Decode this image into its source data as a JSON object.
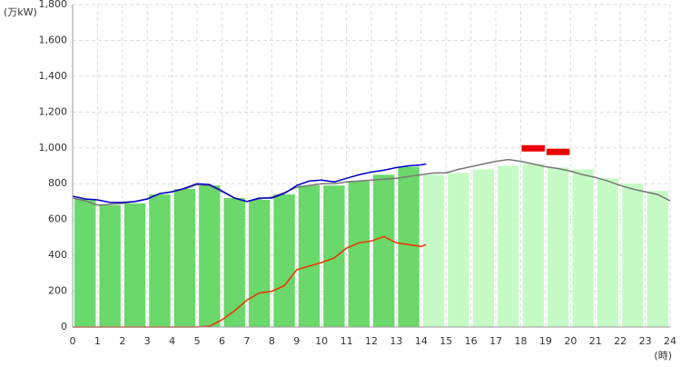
{
  "chart_data": {
    "type": "combo",
    "y_unit": "(万kW)",
    "x_unit": "(時)",
    "xlim": [
      0,
      24
    ],
    "xticks": [
      0,
      1,
      2,
      3,
      4,
      5,
      6,
      7,
      8,
      9,
      10,
      11,
      12,
      13,
      14,
      15,
      16,
      17,
      18,
      19,
      20,
      21,
      22,
      23,
      24
    ],
    "ylim": [
      0,
      1800
    ],
    "yticks": [
      0,
      200,
      400,
      600,
      800,
      {
        "value": 1000,
        "label": "1,000"
      },
      {
        "value": 1200,
        "label": "1,200"
      },
      {
        "value": 1400,
        "label": "1,400"
      },
      {
        "value": 1600,
        "label": "1,600"
      },
      {
        "value": 1800,
        "label": "1,800"
      }
    ],
    "grid": true,
    "series": [
      {
        "type": "bar",
        "color": "#6ad86a",
        "x": [
          0,
          1,
          2,
          3,
          4,
          5,
          6,
          7,
          8,
          9,
          10,
          11,
          12,
          13
        ],
        "values": [
          715,
          680,
          690,
          740,
          770,
          790,
          720,
          710,
          740,
          790,
          790,
          815,
          850,
          895
        ]
      },
      {
        "type": "bar",
        "color": "#c6fbc6",
        "x": [
          14,
          15,
          16,
          17,
          18,
          19,
          20,
          21,
          22,
          23
        ],
        "values": [
          850,
          860,
          880,
          900,
          910,
          890,
          880,
          830,
          800,
          760
        ]
      },
      {
        "type": "marker",
        "color": "#ee0000",
        "x": [
          18,
          19
        ],
        "values": [
          1000,
          980
        ]
      },
      {
        "type": "line",
        "color": "#777777",
        "x": [
          0,
          0.5,
          1,
          1.5,
          2,
          2.5,
          3,
          3.5,
          4,
          4.5,
          5,
          5.5,
          6,
          6.5,
          7,
          7.5,
          8,
          8.5,
          9,
          9.5,
          10,
          10.5,
          11,
          11.5,
          12,
          12.5,
          13,
          13.5,
          14,
          14.5,
          15,
          15.5,
          16,
          16.5,
          17,
          17.5,
          18,
          18.5,
          19,
          19.5,
          20,
          20.5,
          21,
          21.5,
          22,
          22.5,
          23,
          23.5,
          24
        ],
        "values": [
          720,
          705,
          680,
          685,
          690,
          700,
          715,
          745,
          755,
          770,
          795,
          790,
          755,
          720,
          700,
          715,
          725,
          750,
          780,
          790,
          800,
          800,
          810,
          815,
          820,
          825,
          830,
          840,
          850,
          860,
          860,
          880,
          895,
          910,
          925,
          935,
          925,
          910,
          895,
          885,
          870,
          850,
          835,
          815,
          790,
          770,
          755,
          740,
          705
        ]
      },
      {
        "type": "line",
        "color": "#0000cc",
        "x": [
          0,
          0.5,
          1,
          1.5,
          2,
          2.5,
          3,
          3.5,
          4,
          4.5,
          5,
          5.5,
          6,
          6.5,
          7,
          7.5,
          8,
          8.5,
          9,
          9.5,
          10,
          10.5,
          11,
          11.5,
          12,
          12.5,
          13,
          13.5,
          14,
          14.2
        ],
        "values": [
          730,
          715,
          710,
          695,
          695,
          700,
          715,
          745,
          755,
          775,
          800,
          795,
          760,
          720,
          700,
          720,
          720,
          745,
          790,
          815,
          820,
          810,
          830,
          850,
          865,
          875,
          890,
          900,
          905,
          910
        ]
      },
      {
        "type": "line",
        "color": "#ee3300",
        "x": [
          0,
          1,
          2,
          3,
          4,
          5,
          5.5,
          6,
          6.5,
          7,
          7.5,
          8,
          8.5,
          9,
          9.5,
          10,
          10.5,
          11,
          11.5,
          12,
          12.5,
          13,
          13.5,
          14,
          14.2
        ],
        "values": [
          0,
          0,
          0,
          0,
          0,
          0,
          5,
          40,
          90,
          150,
          190,
          200,
          230,
          320,
          340,
          360,
          385,
          440,
          470,
          480,
          505,
          470,
          460,
          450,
          460
        ]
      }
    ]
  }
}
